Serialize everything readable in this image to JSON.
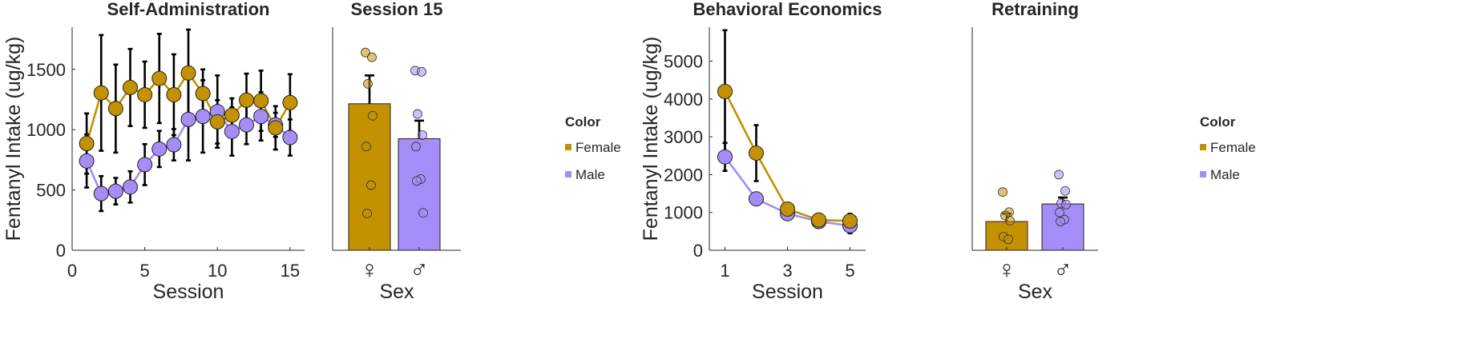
{
  "colors": {
    "female": "#C49102",
    "male": "#A48DF7",
    "errorbar": "#000000",
    "axis": "#262626"
  },
  "chart_data": [
    {
      "id": "self-administration",
      "type": "line",
      "title": "Self-Administration",
      "xlabel": "Session",
      "ylabel": "Fentanyl Intake (ug/kg)",
      "xlim": [
        0,
        16
      ],
      "ylim": [
        0,
        1850
      ],
      "xticks": [
        0,
        5,
        10,
        15
      ],
      "yticks": [
        0,
        500,
        1000,
        1500
      ],
      "x": [
        1,
        2,
        3,
        4,
        5,
        6,
        7,
        8,
        9,
        10,
        11,
        12,
        13,
        14,
        15
      ],
      "series": [
        {
          "name": "Female",
          "color": "#C49102",
          "values": [
            885,
            1305,
            1175,
            1350,
            1290,
            1425,
            1290,
            1470,
            1300,
            1065,
            1120,
            1245,
            1240,
            1015,
            1225
          ],
          "err": [
            250,
            480,
            365,
            320,
            275,
            370,
            335,
            360,
            200,
            180,
            140,
            220,
            250,
            180,
            235
          ]
        },
        {
          "name": "Male",
          "color": "#A48DF7",
          "values": [
            740,
            470,
            490,
            525,
            710,
            840,
            875,
            1085,
            1110,
            1150,
            985,
            1040,
            1110,
            1040,
            935
          ],
          "err": [
            220,
            145,
            110,
            130,
            170,
            150,
            130,
            340,
            300,
            300,
            200,
            160,
            200,
            100,
            150
          ]
        }
      ]
    },
    {
      "id": "session-15",
      "type": "bar",
      "title": "Session 15",
      "xlabel": "Sex",
      "ylim": [
        0,
        1850
      ],
      "categories": [
        "♀",
        "♂"
      ],
      "series": [
        {
          "name": "Female",
          "color": "#C49102",
          "value": 1215,
          "err": 235,
          "points": [
            1640,
            1600,
            1380,
            1115,
            860,
            540,
            305
          ]
        },
        {
          "name": "Male",
          "color": "#A48DF7",
          "value": 925,
          "err": 150,
          "points": [
            1490,
            1480,
            1130,
            955,
            860,
            590,
            575,
            310
          ]
        }
      ]
    },
    {
      "id": "behavioral-economics",
      "type": "line",
      "title": "Behavioral Economics",
      "xlabel": "Session",
      "ylabel": "Fentanyl Intake (ug/kg)",
      "xlim": [
        0.5,
        5.5
      ],
      "ylim": [
        0,
        5900
      ],
      "xticks": [
        1,
        3,
        5
      ],
      "yticks": [
        0,
        1000,
        2000,
        3000,
        4000,
        5000
      ],
      "x": [
        1,
        2,
        3,
        4,
        5
      ],
      "series": [
        {
          "name": "Female",
          "color": "#C49102",
          "values": [
            4200,
            2570,
            1090,
            800,
            775
          ],
          "err": [
            1620,
            740,
            150,
            120,
            190
          ]
        },
        {
          "name": "Male",
          "color": "#A48DF7",
          "values": [
            2470,
            1360,
            970,
            760,
            650
          ],
          "err": [
            370,
            160,
            150,
            120,
            200
          ]
        }
      ]
    },
    {
      "id": "retraining",
      "type": "bar",
      "title": "Retraining",
      "xlabel": "Sex",
      "ylim": [
        0,
        5900
      ],
      "categories": [
        "♀",
        "♂"
      ],
      "series": [
        {
          "name": "Female",
          "color": "#C49102",
          "value": 760,
          "err": 210,
          "points": [
            1540,
            1010,
            920,
            780,
            360,
            290
          ]
        },
        {
          "name": "Male",
          "color": "#A48DF7",
          "value": 1225,
          "err": 170,
          "points": [
            2000,
            1570,
            1240,
            1210,
            1000,
            810,
            760
          ]
        }
      ]
    }
  ],
  "legends": [
    {
      "id": "legend-left",
      "title": "Color",
      "items": [
        {
          "label": "Female",
          "color": "#C49102"
        },
        {
          "label": "Male",
          "color": "#A48DF7"
        }
      ]
    },
    {
      "id": "legend-right",
      "title": "Color",
      "items": [
        {
          "label": "Female",
          "color": "#C49102"
        },
        {
          "label": "Male",
          "color": "#A48DF7"
        }
      ]
    }
  ]
}
